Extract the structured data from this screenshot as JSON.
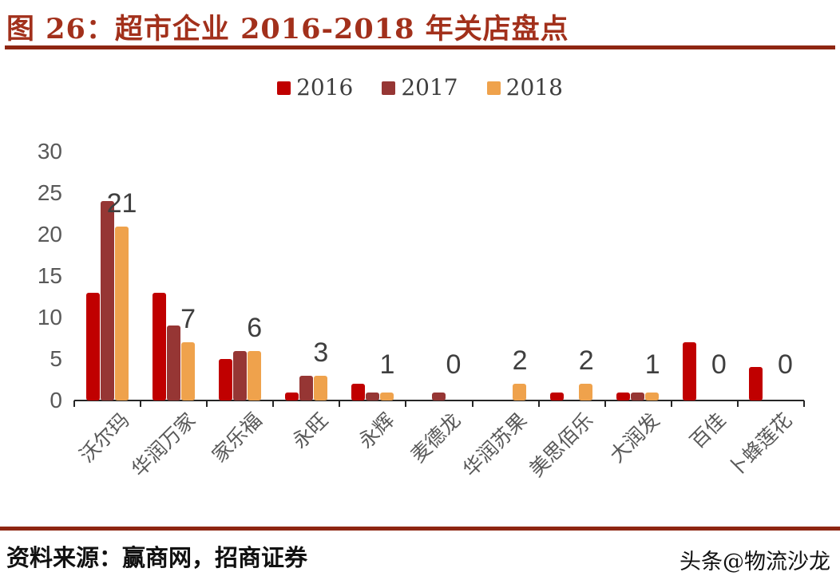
{
  "figure": {
    "title": "图 26：超市企业 2016-2018 年关店盘点",
    "source_label": "资料来源：赢商网，招商证券",
    "watermark": "头条@物流沙龙"
  },
  "colors": {
    "title_red": "#A2301B",
    "rule_red": "#8E2612",
    "series_2016": "#C00000",
    "series_2017": "#963634",
    "series_2018": "#EFA24C",
    "axis_text_gray": "#595959",
    "data_label_gray": "#3F3F3F",
    "axis_line": "#262626"
  },
  "chart_data": {
    "type": "bar",
    "title": "超市企业 2016-2018 年关店盘点",
    "categories": [
      "沃尔玛",
      "华润万家",
      "家乐福",
      "永旺",
      "永辉",
      "麦德龙",
      "华润苏果",
      "美思佰乐",
      "大润发",
      "百佳",
      "卜蜂莲花"
    ],
    "series": [
      {
        "name": "2016",
        "color": "#C00000",
        "values": [
          13,
          13,
          5,
          1,
          2,
          0,
          0,
          1,
          1,
          7,
          4
        ]
      },
      {
        "name": "2017",
        "color": "#963634",
        "values": [
          24,
          9,
          6,
          3,
          1,
          1,
          0,
          0,
          1,
          0,
          0
        ]
      },
      {
        "name": "2018",
        "color": "#EFA24C",
        "values": [
          21,
          7,
          6,
          3,
          1,
          0,
          2,
          2,
          1,
          0,
          0
        ]
      }
    ],
    "data_labels": {
      "on_series": "2018",
      "values": [
        21,
        7,
        6,
        3,
        1,
        0,
        2,
        2,
        1,
        0,
        0
      ]
    },
    "xlabel": "",
    "ylabel": "",
    "ylim": [
      0,
      30
    ],
    "yticks": [
      0,
      5,
      10,
      15,
      20,
      25,
      30
    ],
    "grid": false,
    "legend_position": "top-center"
  }
}
